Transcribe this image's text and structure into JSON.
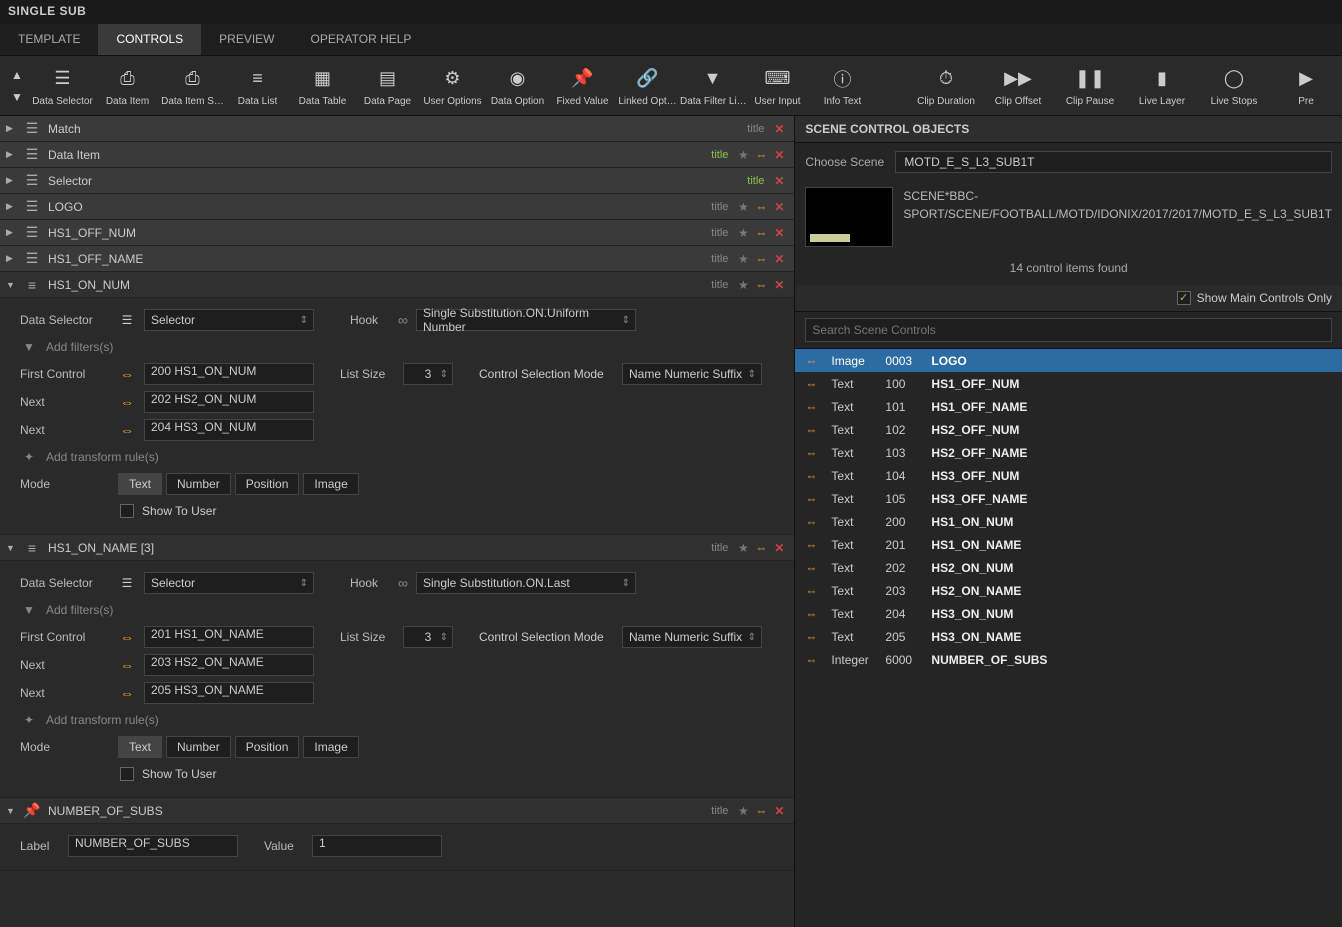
{
  "window": {
    "title": "SINGLE SUB"
  },
  "tabs": [
    "TEMPLATE",
    "CONTROLS",
    "PREVIEW",
    "OPERATOR HELP"
  ],
  "active_tab": 1,
  "toolbar_left": [
    {
      "label": "Data Selector"
    },
    {
      "label": "Data Item"
    },
    {
      "label": "Data Item S…"
    },
    {
      "label": "Data List"
    },
    {
      "label": "Data Table"
    },
    {
      "label": "Data Page"
    },
    {
      "label": "User Options"
    },
    {
      "label": "Data Option"
    },
    {
      "label": "Fixed Value"
    },
    {
      "label": "Linked Opt…"
    },
    {
      "label": "Data Filter Li…"
    },
    {
      "label": "User Input"
    },
    {
      "label": "Info Text"
    }
  ],
  "toolbar_right": [
    {
      "label": "Clip Duration"
    },
    {
      "label": "Clip Offset"
    },
    {
      "label": "Clip Pause"
    },
    {
      "label": "Live Layer"
    },
    {
      "label": "Live Stops"
    },
    {
      "label": "Pre"
    }
  ],
  "rows": [
    {
      "label": "Match",
      "tag": "title",
      "tag_color": "",
      "star": false,
      "link": false,
      "close": true
    },
    {
      "label": "Data Item",
      "tag": "title",
      "tag_color": "green",
      "star": true,
      "link": true,
      "close": true
    },
    {
      "label": "Selector",
      "tag": "title",
      "tag_color": "green",
      "star": false,
      "link": false,
      "close": true
    },
    {
      "label": "LOGO",
      "tag": "title",
      "tag_color": "",
      "star": true,
      "link": true,
      "close": true
    },
    {
      "label": "HS1_OFF_NUM",
      "tag": "title",
      "tag_color": "",
      "star": true,
      "link": true,
      "close": true
    },
    {
      "label": "HS1_OFF_NAME",
      "tag": "title",
      "tag_color": "",
      "star": true,
      "link": true,
      "close": true
    }
  ],
  "panel1": {
    "header": {
      "label": "HS1_ON_NUM",
      "tag": "title"
    },
    "data_selector_label": "Data Selector",
    "selector": "Selector",
    "hook_label": "Hook",
    "hook": "Single Substitution.ON.Uniform Number",
    "add_filters": "Add filters(s)",
    "first_control_label": "First Control",
    "first_control": "200 HS1_ON_NUM",
    "list_size_label": "List Size",
    "list_size": "3",
    "csm_label": "Control Selection Mode",
    "csm": "Name Numeric Suffix",
    "next_label": "Next",
    "next1": "202 HS2_ON_NUM",
    "next2": "204 HS3_ON_NUM",
    "add_transform": "Add transform rule(s)",
    "mode_label": "Mode",
    "modes": [
      "Text",
      "Number",
      "Position",
      "Image"
    ],
    "mode_active": 0,
    "show_to_user": "Show To User"
  },
  "panel2": {
    "header": {
      "label": "HS1_ON_NAME [3]",
      "tag": "title"
    },
    "data_selector_label": "Data Selector",
    "selector": "Selector",
    "hook_label": "Hook",
    "hook": "Single Substitution.ON.Last",
    "add_filters": "Add filters(s)",
    "first_control_label": "First Control",
    "first_control": "201 HS1_ON_NAME",
    "list_size_label": "List Size",
    "list_size": "3",
    "csm_label": "Control Selection Mode",
    "csm": "Name Numeric Suffix",
    "next_label": "Next",
    "next1": "203 HS2_ON_NAME",
    "next2": "205 HS3_ON_NAME",
    "add_transform": "Add transform rule(s)",
    "mode_label": "Mode",
    "modes": [
      "Text",
      "Number",
      "Position",
      "Image"
    ],
    "mode_active": 0,
    "show_to_user": "Show To User"
  },
  "panel3": {
    "header": {
      "label": "NUMBER_OF_SUBS",
      "tag": "title"
    },
    "label_label": "Label",
    "label_value": "NUMBER_OF_SUBS",
    "value_label": "Value",
    "value": "1"
  },
  "scene": {
    "header": "SCENE CONTROL OBJECTS",
    "choose_label": "Choose Scene",
    "choose_value": "MOTD_E_S_L3_SUB1T",
    "path": "SCENE*BBC-SPORT/SCENE/FOOTBALL/MOTD/IDONIX/2017/2017/MOTD_E_S_L3_SUB1T",
    "found": "14 control items found",
    "show_main": "Show Main Controls Only",
    "search_placeholder": "Search Scene Controls"
  },
  "controls": [
    {
      "type": "Image",
      "id": "0003",
      "name": "LOGO",
      "sel": true
    },
    {
      "type": "Text",
      "id": "100",
      "name": "HS1_OFF_NUM"
    },
    {
      "type": "Text",
      "id": "101",
      "name": "HS1_OFF_NAME"
    },
    {
      "type": "Text",
      "id": "102",
      "name": "HS2_OFF_NUM"
    },
    {
      "type": "Text",
      "id": "103",
      "name": "HS2_OFF_NAME"
    },
    {
      "type": "Text",
      "id": "104",
      "name": "HS3_OFF_NUM"
    },
    {
      "type": "Text",
      "id": "105",
      "name": "HS3_OFF_NAME"
    },
    {
      "type": "Text",
      "id": "200",
      "name": "HS1_ON_NUM"
    },
    {
      "type": "Text",
      "id": "201",
      "name": "HS1_ON_NAME"
    },
    {
      "type": "Text",
      "id": "202",
      "name": "HS2_ON_NUM"
    },
    {
      "type": "Text",
      "id": "203",
      "name": "HS2_ON_NAME"
    },
    {
      "type": "Text",
      "id": "204",
      "name": "HS3_ON_NUM"
    },
    {
      "type": "Text",
      "id": "205",
      "name": "HS3_ON_NAME"
    },
    {
      "type": "Integer",
      "id": "6000",
      "name": "NUMBER_OF_SUBS"
    }
  ],
  "icons": {
    "toolbar_left": [
      "☰",
      "⎙",
      "⎙",
      "≡",
      "▦",
      "▤",
      "⚙",
      "◉",
      "📌",
      "🔗",
      "▼",
      "⌨",
      "ⓘ"
    ],
    "toolbar_right": [
      "⏱",
      "▶▶",
      "❚❚",
      "▮",
      "◯",
      "▶"
    ]
  }
}
